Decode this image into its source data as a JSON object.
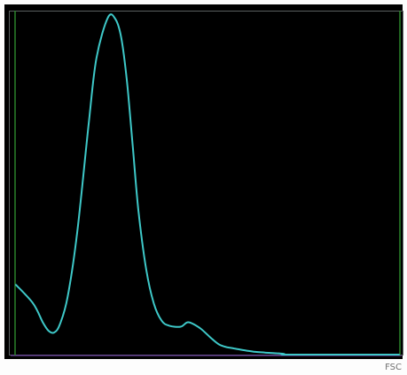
{
  "chart_data": {
    "type": "line",
    "title": "",
    "xlabel": "FSC",
    "ylabel": "",
    "xlim": [
      0,
      1
    ],
    "ylim": [
      0,
      1
    ],
    "grid": false,
    "legend": "none",
    "series": [
      {
        "x": [
          0.0,
          0.045,
          0.07,
          0.085,
          0.1,
          0.115,
          0.135,
          0.16,
          0.19,
          0.21,
          0.24,
          0.26,
          0.275,
          0.29,
          0.305,
          0.32,
          0.34,
          0.36,
          0.38,
          0.4,
          0.43,
          0.45,
          0.48,
          0.51,
          0.53,
          0.55,
          0.57,
          0.6,
          0.625,
          0.65,
          0.68,
          0.7,
          0.72,
          1.0
        ],
        "values": [
          0.205,
          0.15,
          0.095,
          0.07,
          0.065,
          0.09,
          0.17,
          0.36,
          0.68,
          0.87,
          0.99,
          0.985,
          0.93,
          0.8,
          0.61,
          0.42,
          0.25,
          0.15,
          0.1,
          0.085,
          0.082,
          0.095,
          0.078,
          0.048,
          0.03,
          0.022,
          0.018,
          0.012,
          0.008,
          0.006,
          0.004,
          0.002,
          0.0,
          0.0
        ],
        "color": "#3ec8c8"
      }
    ]
  },
  "colors": {
    "background": "#000000",
    "frame": "#5a6060",
    "left_gate_line": "#2e8b2e",
    "right_gate_line": "#2e8b2e",
    "baseline": "#6b3fa0",
    "curve": "#3ec8c8",
    "axis_text": "#707070"
  }
}
